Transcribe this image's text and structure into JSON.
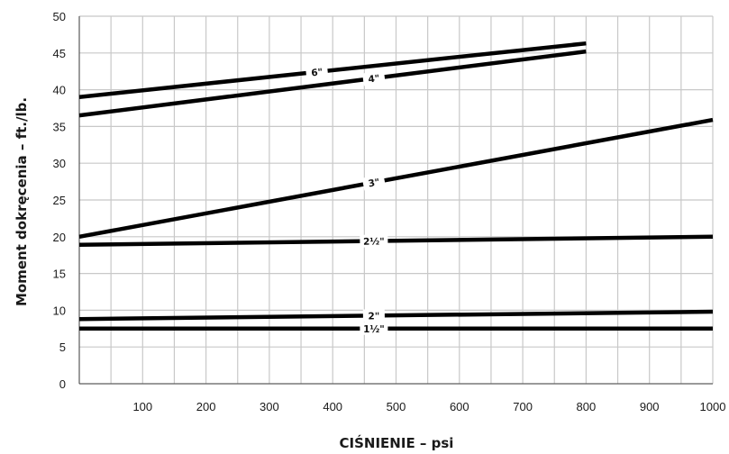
{
  "chart_data": {
    "type": "line",
    "title": "",
    "xlabel": "CIŚNIENIE – psi",
    "ylabel": "Moment dokręcenia – ft./lb.",
    "xlim": [
      0,
      1000
    ],
    "ylim": [
      0,
      50
    ],
    "x_ticks": [
      100,
      200,
      300,
      400,
      500,
      600,
      700,
      800,
      900,
      1000
    ],
    "y_ticks": [
      0,
      5,
      10,
      15,
      20,
      25,
      30,
      35,
      40,
      45,
      50
    ],
    "grid": true,
    "legend": "none",
    "series": [
      {
        "name": "6\"",
        "x": [
          0,
          800
        ],
        "y": [
          39,
          46.3
        ],
        "label_at": 375
      },
      {
        "name": "4\"",
        "x": [
          0,
          800
        ],
        "y": [
          36.5,
          45.2
        ],
        "label_at": 465
      },
      {
        "name": "3\"",
        "x": [
          0,
          1000
        ],
        "y": [
          20,
          35.9
        ],
        "label_at": 465
      },
      {
        "name": "2½\"",
        "x": [
          0,
          1000
        ],
        "y": [
          18.9,
          20
        ],
        "label_at": 465
      },
      {
        "name": "2\"",
        "x": [
          0,
          1000
        ],
        "y": [
          8.8,
          9.8
        ],
        "label_at": 465
      },
      {
        "name": "1½\"",
        "x": [
          0,
          1000
        ],
        "y": [
          7.5,
          7.5
        ],
        "label_at": 465
      }
    ]
  }
}
